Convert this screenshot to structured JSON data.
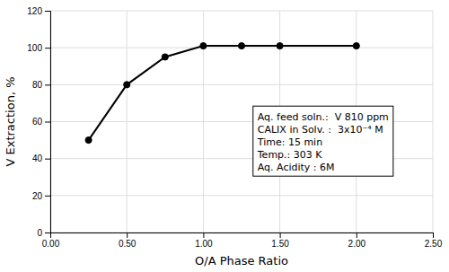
{
  "chart_data": {
    "type": "line",
    "x": [
      0.25,
      0.5,
      0.75,
      1.0,
      1.25,
      1.5,
      2.0
    ],
    "values": [
      50,
      80,
      95,
      101,
      101,
      101,
      101
    ],
    "xlabel": "O/A Phase Ratio",
    "ylabel": "V Extraction, %",
    "xlim": [
      0.0,
      2.5
    ],
    "ylim": [
      0,
      120
    ],
    "xticks": [
      {
        "value": 0.0,
        "label": "0.00"
      },
      {
        "value": 0.5,
        "label": "0.50"
      },
      {
        "value": 1.0,
        "label": "1.00"
      },
      {
        "value": 1.5,
        "label": "1.50"
      },
      {
        "value": 2.0,
        "label": "2.00"
      },
      {
        "value": 2.5,
        "label": "2.50"
      }
    ],
    "yticks": [
      0,
      20,
      40,
      60,
      80,
      100,
      120
    ],
    "annotations": [
      "Aq. feed soln.:  V 810 ppm",
      "CALIX in Solv. :  3x10⁻⁴ M",
      "Time: 15 min",
      "Temp.: 303 K",
      "Aq. Acidity : 6M"
    ],
    "color": "black",
    "marker": "circle",
    "grid": true
  }
}
